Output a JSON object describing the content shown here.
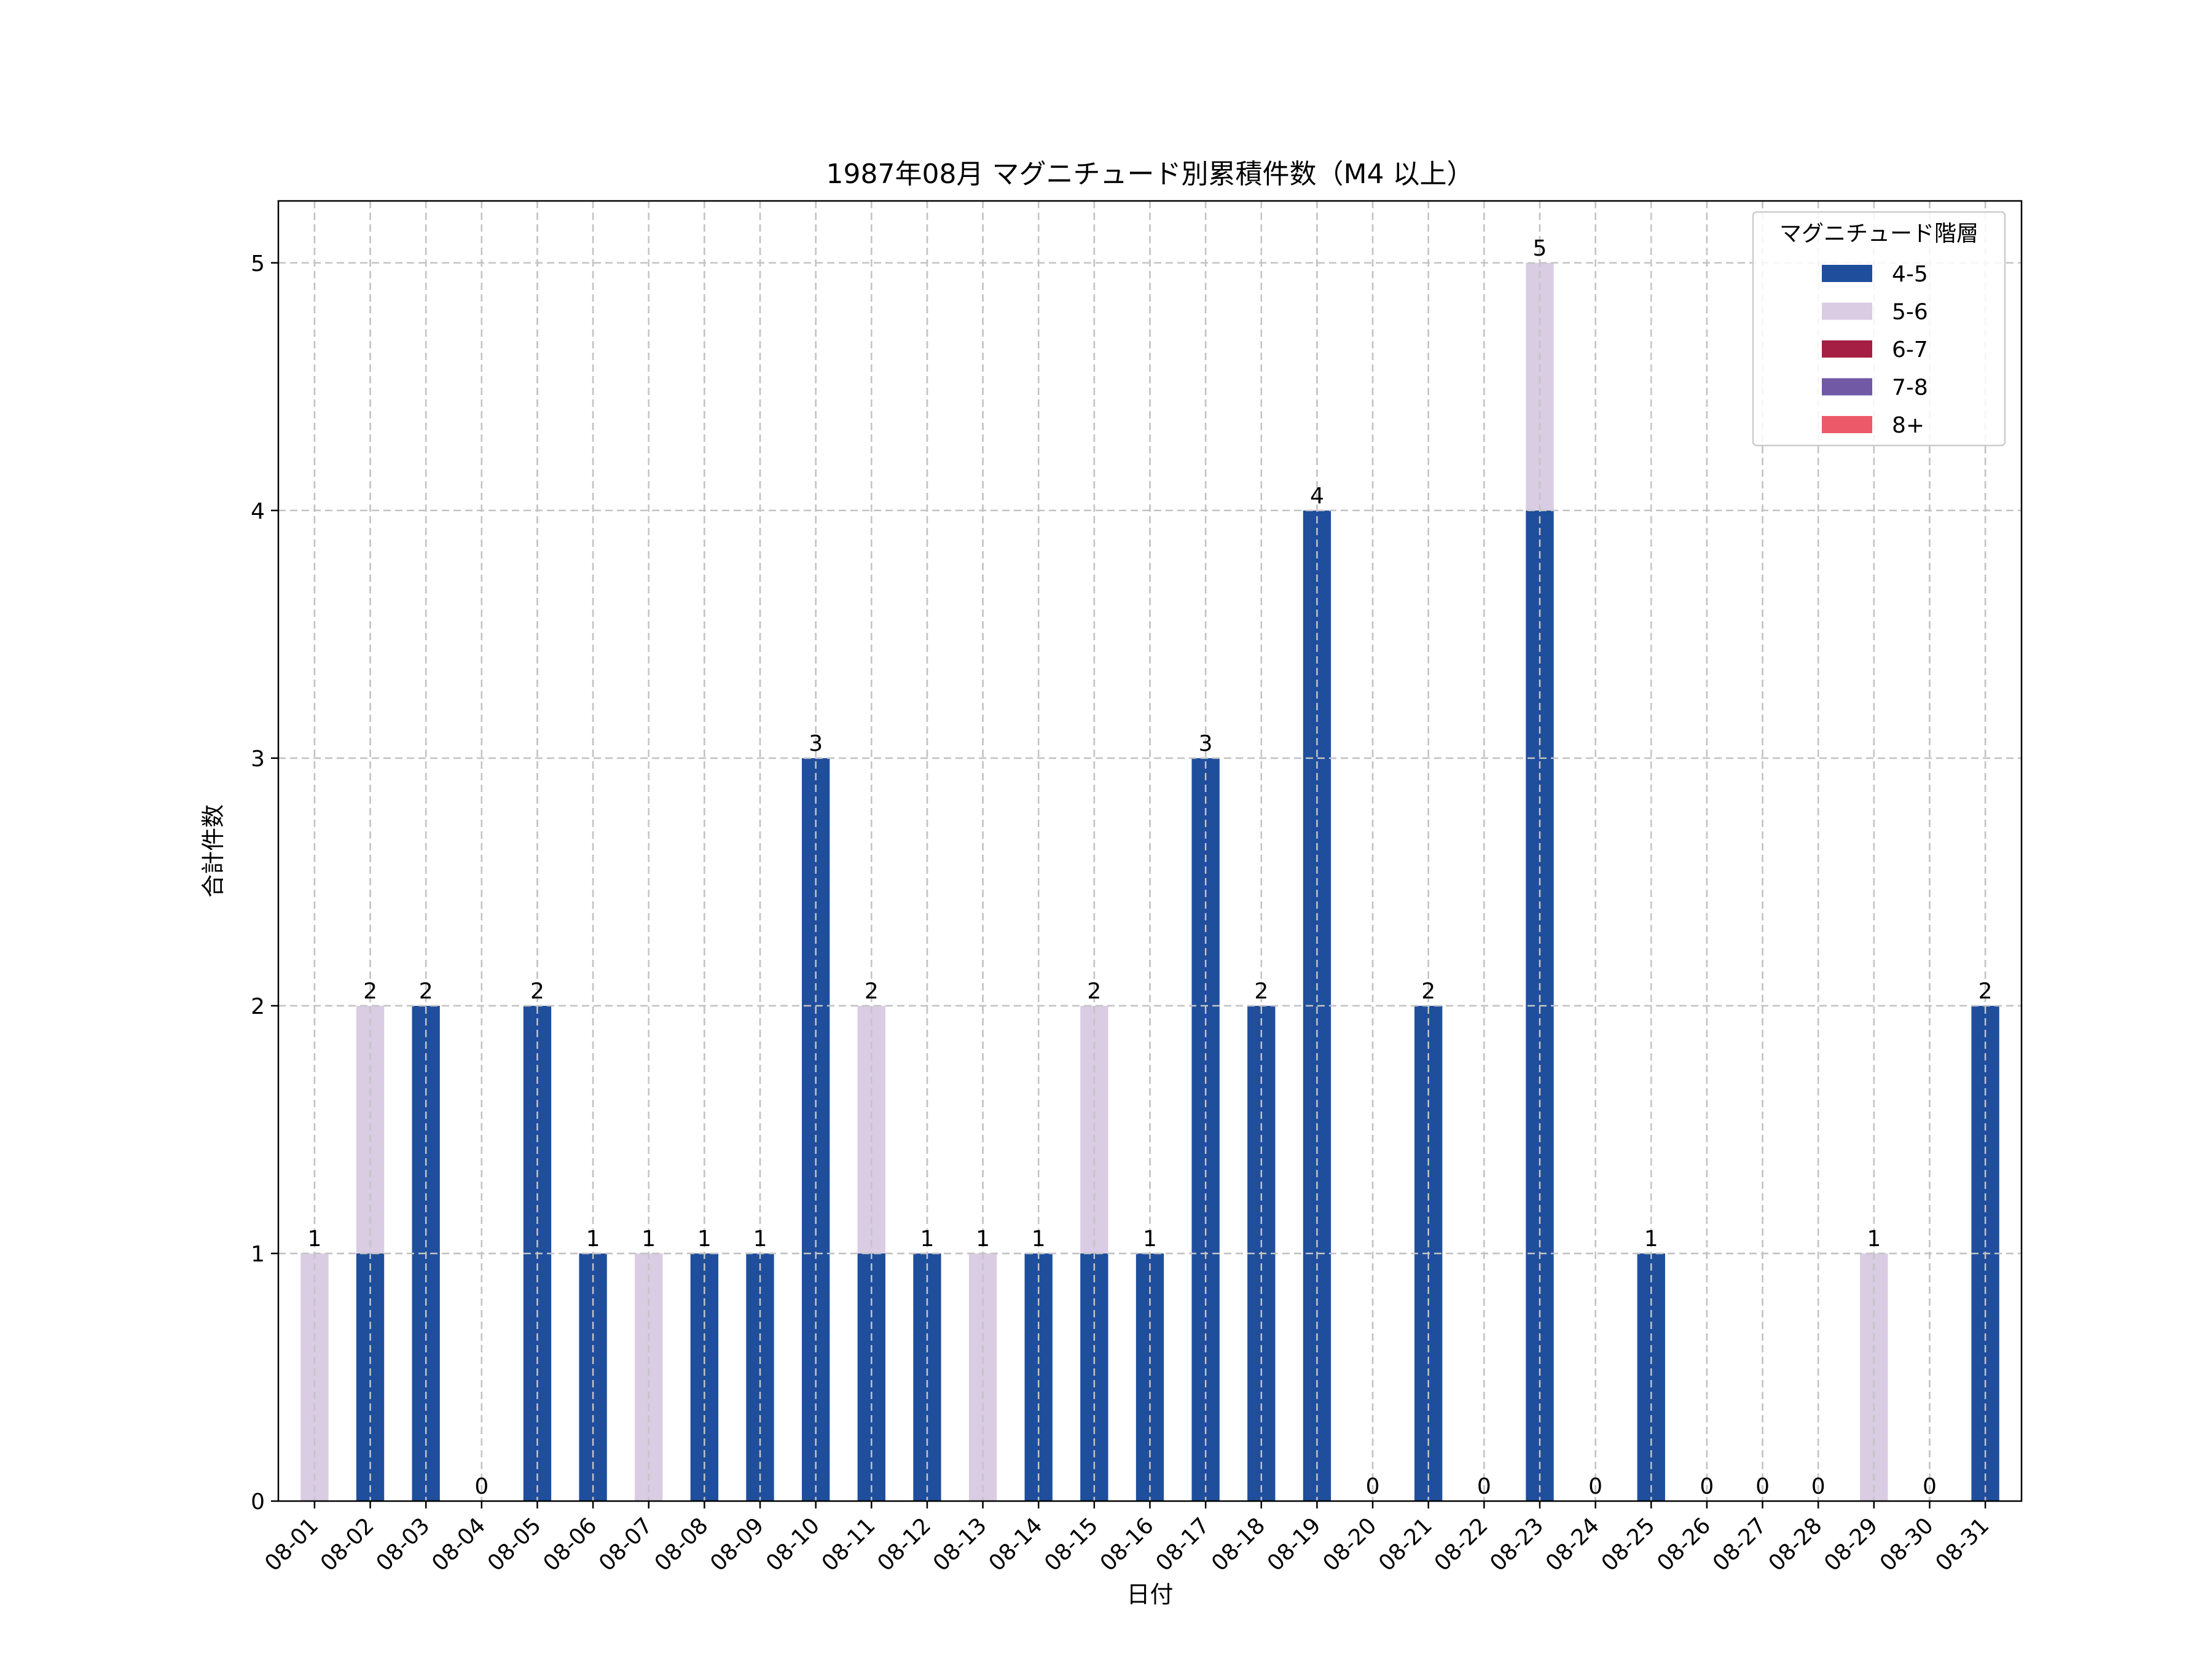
{
  "chart_data": {
    "type": "bar",
    "stacked": true,
    "title": "1987年08月 マグニチュード別累積件数（M4 以上）",
    "xlabel": "日付",
    "ylabel": "合計件数",
    "ylim": [
      0,
      5.25
    ],
    "yticks": [
      0,
      1,
      2,
      3,
      4,
      5
    ],
    "grid": true,
    "legend": {
      "title": "マグニチュード階層",
      "placement": "top-right"
    },
    "categories": [
      "08-01",
      "08-02",
      "08-03",
      "08-04",
      "08-05",
      "08-06",
      "08-07",
      "08-08",
      "08-09",
      "08-10",
      "08-11",
      "08-12",
      "08-13",
      "08-14",
      "08-15",
      "08-16",
      "08-17",
      "08-18",
      "08-19",
      "08-20",
      "08-21",
      "08-22",
      "08-23",
      "08-24",
      "08-25",
      "08-26",
      "08-27",
      "08-28",
      "08-29",
      "08-30",
      "08-31"
    ],
    "series": [
      {
        "name": "4-5",
        "color": "#1f4e9c",
        "values": [
          0,
          1,
          2,
          0,
          2,
          1,
          0,
          1,
          1,
          3,
          1,
          1,
          0,
          1,
          1,
          1,
          3,
          2,
          4,
          0,
          2,
          0,
          4,
          0,
          1,
          0,
          0,
          0,
          0,
          0,
          2
        ]
      },
      {
        "name": "5-6",
        "color": "#d9cce3",
        "values": [
          1,
          1,
          0,
          0,
          0,
          0,
          1,
          0,
          0,
          0,
          1,
          0,
          1,
          0,
          1,
          0,
          0,
          0,
          0,
          0,
          0,
          0,
          1,
          0,
          0,
          0,
          0,
          0,
          1,
          0,
          0
        ]
      },
      {
        "name": "6-7",
        "color": "#a51f45",
        "values": [
          0,
          0,
          0,
          0,
          0,
          0,
          0,
          0,
          0,
          0,
          0,
          0,
          0,
          0,
          0,
          0,
          0,
          0,
          0,
          0,
          0,
          0,
          0,
          0,
          0,
          0,
          0,
          0,
          0,
          0,
          0
        ]
      },
      {
        "name": "7-8",
        "color": "#7159a5",
        "values": [
          0,
          0,
          0,
          0,
          0,
          0,
          0,
          0,
          0,
          0,
          0,
          0,
          0,
          0,
          0,
          0,
          0,
          0,
          0,
          0,
          0,
          0,
          0,
          0,
          0,
          0,
          0,
          0,
          0,
          0,
          0
        ]
      },
      {
        "name": "8+",
        "color": "#ec5a6a",
        "values": [
          0,
          0,
          0,
          0,
          0,
          0,
          0,
          0,
          0,
          0,
          0,
          0,
          0,
          0,
          0,
          0,
          0,
          0,
          0,
          0,
          0,
          0,
          0,
          0,
          0,
          0,
          0,
          0,
          0,
          0,
          0
        ]
      }
    ],
    "totals": [
      1,
      2,
      2,
      0,
      2,
      1,
      1,
      1,
      1,
      3,
      2,
      1,
      1,
      1,
      2,
      1,
      3,
      2,
      4,
      0,
      2,
      0,
      5,
      0,
      1,
      0,
      0,
      0,
      1,
      0,
      2
    ]
  }
}
